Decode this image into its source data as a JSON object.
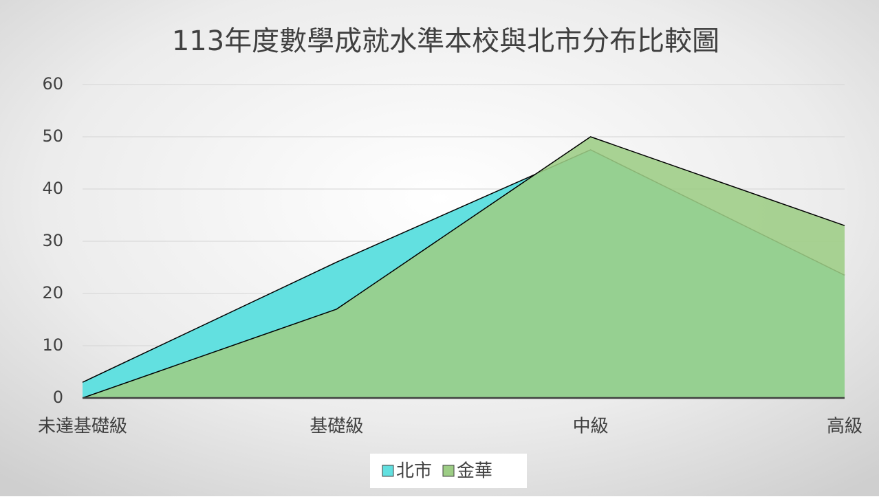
{
  "chart_data": {
    "type": "area",
    "title": "113年度數學成就水準本校與北市分布比較圖",
    "categories": [
      "未達基礎級",
      "基礎級",
      "中級",
      "高級"
    ],
    "series": [
      {
        "name": "北市",
        "color": "#62e0e0",
        "values": [
          3,
          26,
          47.5,
          23.5
        ]
      },
      {
        "name": "金華",
        "color": "#9dcd85",
        "values": [
          0,
          17,
          50,
          33
        ]
      }
    ],
    "ylim": [
      0,
      60
    ],
    "yticks": [
      0,
      10,
      20,
      30,
      40,
      50,
      60
    ],
    "grid": true,
    "legend": "bottom"
  }
}
